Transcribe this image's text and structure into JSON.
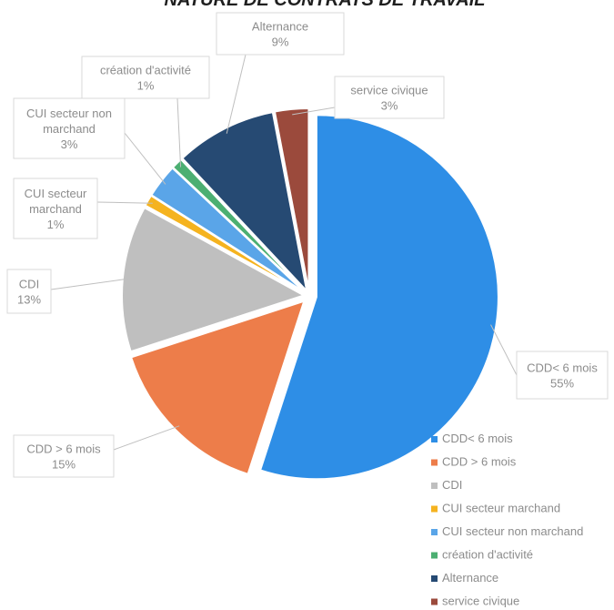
{
  "chart_data": {
    "type": "pie",
    "title": "NATURE DE CONTRATS DE TRAVAIL",
    "slices": [
      {
        "name": "CDD< 6 mois",
        "value": 55,
        "label": "55%",
        "color": "#2e8ee6"
      },
      {
        "name": "CDD > 6 mois",
        "value": 15,
        "label": "15%",
        "color": "#ed7d4a"
      },
      {
        "name": "CDI",
        "value": 13,
        "label": "13%",
        "color": "#bfbfbf"
      },
      {
        "name": "CUI secteur marchand",
        "value": 1,
        "label": "1%",
        "color": "#f5b31f"
      },
      {
        "name": "CUI secteur non marchand",
        "value": 3,
        "label": "3%",
        "color": "#5aa5e8"
      },
      {
        "name": "création d'activité",
        "value": 1,
        "label": "1%",
        "color": "#4caf72"
      },
      {
        "name": "Alternance",
        "value": 9,
        "label": "9%",
        "color": "#264a73"
      },
      {
        "name": "service civique",
        "value": 3,
        "label": "3%",
        "color": "#9b4a3c"
      }
    ],
    "data_label_lines": [
      [
        "CDD< 6 mois",
        "55%"
      ],
      [
        "CDD > 6 mois",
        "15%"
      ],
      [
        "CDI",
        "13%"
      ],
      [
        "CUI secteur",
        "marchand",
        "1%"
      ],
      [
        "CUI secteur non",
        "marchand",
        "3%"
      ],
      [
        "création d'activité",
        "1%"
      ],
      [
        "Alternance",
        "9%"
      ],
      [
        "service civique",
        "3%"
      ]
    ],
    "legend": {
      "position": "bottom-right",
      "entries": [
        "CDD< 6 mois",
        "CDD > 6 mois",
        "CDI",
        "CUI secteur marchand",
        "CUI secteur non marchand",
        "création d'activité",
        "Alternance",
        "service civique"
      ]
    }
  }
}
